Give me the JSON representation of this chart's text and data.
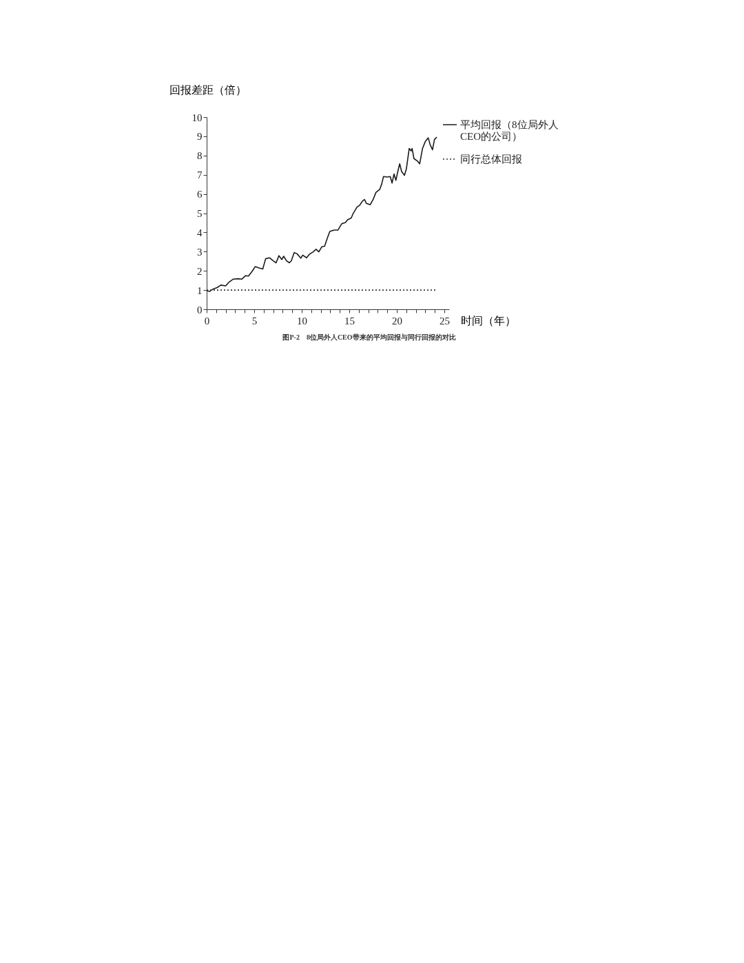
{
  "chart_data": {
    "type": "line",
    "xlabel": "时间（年）",
    "ylabel": "回报差距（倍）",
    "annotations": [
      "图P-2　8位局外人CEO带来的平均回报与同行回报的对比"
    ],
    "xlim": [
      0,
      25.5
    ],
    "ylim": [
      0,
      10
    ],
    "xticks": [
      0,
      {
        "value": 1,
        "label": null
      },
      {
        "value": 2,
        "label": null
      },
      {
        "value": 3,
        "label": null
      },
      {
        "value": 4,
        "label": null
      },
      5,
      {
        "value": 6,
        "label": null
      },
      {
        "value": 7,
        "label": null
      },
      {
        "value": 8,
        "label": null
      },
      {
        "value": 9,
        "label": null
      },
      10,
      {
        "value": 11,
        "label": null
      },
      {
        "value": 12,
        "label": null
      },
      {
        "value": 13,
        "label": null
      },
      {
        "value": 14,
        "label": null
      },
      15,
      {
        "value": 16,
        "label": null
      },
      {
        "value": 17,
        "label": null
      },
      {
        "value": 18,
        "label": null
      },
      {
        "value": 19,
        "label": null
      },
      20,
      {
        "value": 21,
        "label": null
      },
      {
        "value": 22,
        "label": null
      },
      {
        "value": 23,
        "label": null
      },
      {
        "value": 24,
        "label": null
      },
      25
    ],
    "yticks": [
      0,
      1,
      2,
      3,
      4,
      5,
      6,
      7,
      8,
      9,
      10
    ],
    "grid": false,
    "legend": "right",
    "series": [
      {
        "name": "平均回报（8位局外人CEO的公司）",
        "color": "#1a1a1a",
        "line_style": "solid",
        "x": [
          0,
          0.3,
          0.7,
          1.1,
          1.5,
          2.0,
          2.3,
          2.8,
          3.3,
          3.7,
          4.1,
          4.4,
          4.8,
          5.1,
          5.5,
          5.9,
          6.2,
          6.6,
          7.0,
          7.3,
          7.6,
          7.9,
          8.1,
          8.4,
          8.7,
          8.9,
          9.2,
          9.5,
          9.9,
          10.1,
          10.5,
          10.8,
          11.2,
          11.5,
          11.8,
          12.1,
          12.4,
          12.7,
          12.95,
          13.4,
          13.8,
          14.2,
          14.6,
          14.8,
          15.2,
          15.4,
          15.8,
          16.1,
          16.4,
          16.6,
          16.8,
          17.2,
          17.5,
          17.8,
          18.2,
          18.4,
          18.6,
          19.0,
          19.3,
          19.5,
          19.7,
          19.9,
          20.1,
          20.3,
          20.5,
          20.8,
          21.0,
          21.3,
          21.5,
          21.6,
          21.8,
          22.2,
          22.4,
          22.7,
          23.0,
          23.3,
          23.5,
          23.75,
          23.95,
          24.2
        ],
        "values": [
          0.97,
          0.93,
          1.06,
          1.13,
          1.26,
          1.22,
          1.39,
          1.57,
          1.59,
          1.57,
          1.75,
          1.73,
          1.99,
          2.22,
          2.15,
          2.1,
          2.63,
          2.68,
          2.52,
          2.42,
          2.79,
          2.59,
          2.76,
          2.52,
          2.42,
          2.52,
          2.95,
          2.89,
          2.66,
          2.82,
          2.68,
          2.86,
          2.99,
          3.12,
          2.99,
          3.25,
          3.28,
          3.72,
          4.05,
          4.12,
          4.12,
          4.45,
          4.52,
          4.65,
          4.75,
          4.98,
          5.31,
          5.42,
          5.64,
          5.71,
          5.51,
          5.44,
          5.71,
          6.08,
          6.24,
          6.51,
          6.91,
          6.88,
          6.91,
          6.57,
          7.04,
          6.71,
          7.17,
          7.57,
          7.17,
          6.97,
          7.3,
          8.37,
          8.24,
          8.37,
          7.84,
          7.7,
          7.57,
          8.37,
          8.74,
          8.92,
          8.57,
          8.3,
          8.83,
          8.96
        ]
      },
      {
        "name": "同行总体回报",
        "color": "#333333",
        "line_style": "dotted",
        "x": [
          0,
          24.2
        ],
        "values": [
          1,
          1
        ]
      }
    ]
  }
}
